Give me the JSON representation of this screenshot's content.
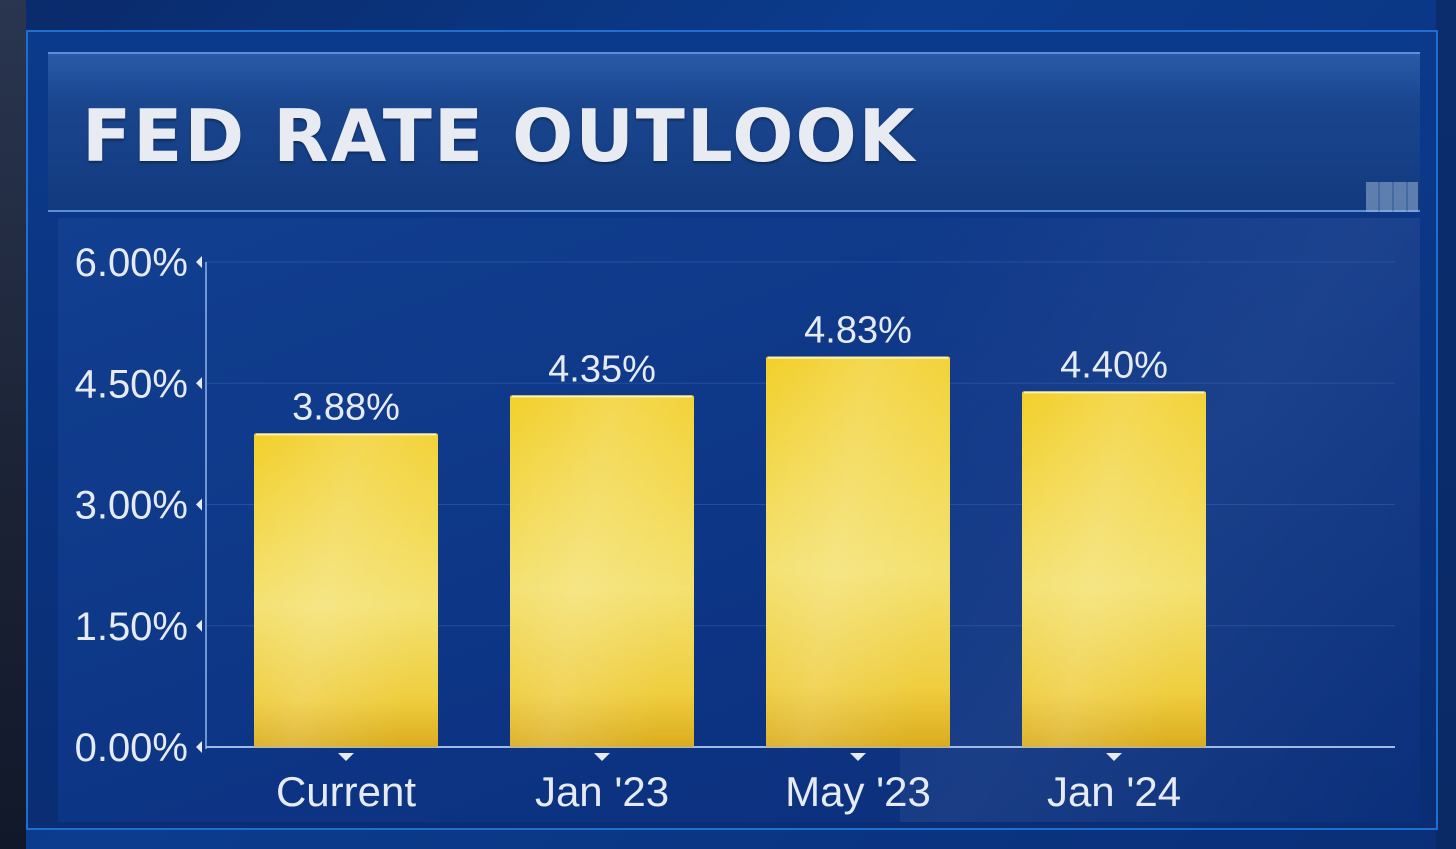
{
  "header": {
    "title": "FED RATE OUTLOOK"
  },
  "colors": {
    "background": "#0b3c8e",
    "bar_top": "#f3d533",
    "bar_bottom": "#e0b61c",
    "text": "#e6ebf3"
  },
  "chart_data": {
    "type": "bar",
    "title": "FED RATE OUTLOOK",
    "xlabel": "",
    "ylabel": "",
    "categories": [
      "Current",
      "Jan '23",
      "May '23",
      "Jan '24"
    ],
    "values": [
      3.88,
      4.35,
      4.83,
      4.4
    ],
    "value_labels": [
      "3.88%",
      "4.35%",
      "4.83%",
      "4.40%"
    ],
    "yticks": [
      0,
      1.5,
      3,
      4.5,
      6
    ],
    "ytick_labels": [
      "0.00%",
      "1.50%",
      "3.00%",
      "4.50%",
      "6.00%"
    ],
    "ylim": [
      0,
      6
    ],
    "grid": true,
    "legend": "none"
  }
}
